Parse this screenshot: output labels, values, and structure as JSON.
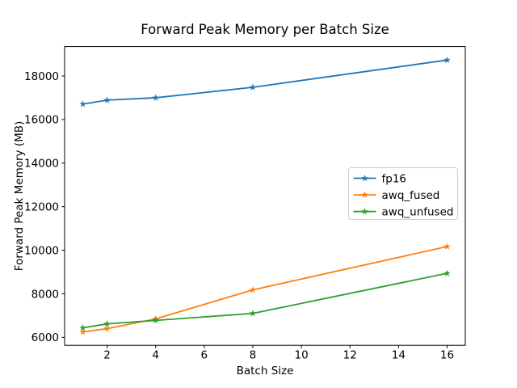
{
  "chart_data": {
    "type": "line",
    "title": "Forward Peak Memory per Batch Size",
    "xlabel": "Batch Size",
    "ylabel": "Forward Peak Memory (MB)",
    "x": [
      1,
      2,
      4,
      8,
      16
    ],
    "series": [
      {
        "name": "fp16",
        "color": "#1f77b4",
        "values": [
          16710,
          16890,
          17000,
          17480,
          18730
        ]
      },
      {
        "name": "awq_fused",
        "color": "#ff7f0e",
        "values": [
          6250,
          6400,
          6850,
          8180,
          10170
        ]
      },
      {
        "name": "awq_unfused",
        "color": "#2ca02c",
        "values": [
          6440,
          6620,
          6780,
          7100,
          8940
        ]
      }
    ],
    "xticks": [
      2,
      4,
      6,
      8,
      10,
      12,
      14,
      16
    ],
    "yticks": [
      6000,
      8000,
      10000,
      12000,
      14000,
      16000,
      18000
    ],
    "xlim": [
      0.25,
      16.75
    ],
    "ylim": [
      5635,
      19350
    ],
    "marker": "star",
    "grid": false,
    "legend_position": "center right",
    "colors": {
      "spine": "#000000",
      "background": "#ffffff",
      "legend_border": "#cccccc"
    }
  }
}
